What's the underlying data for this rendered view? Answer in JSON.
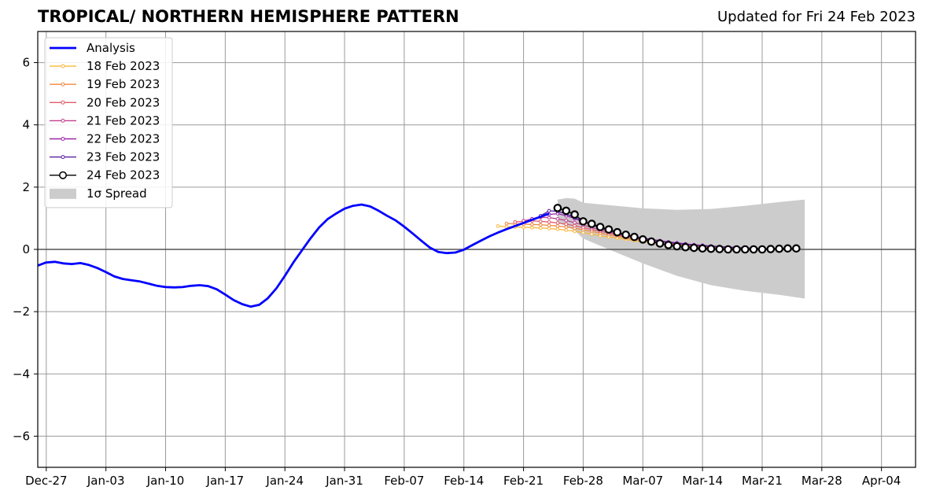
{
  "header": {
    "title": "TROPICAL/ NORTHERN HEMISPHERE PATTERN",
    "updated": "Updated for Fri 24 Feb 2023"
  },
  "chart_data": {
    "type": "line",
    "title": "TROPICAL/ NORTHERN HEMISPHERE PATTERN",
    "xlabel": "",
    "ylabel": "",
    "x_axis": {
      "type": "date",
      "range": [
        "2022-12-26",
        "2023-04-08"
      ],
      "ticks": [
        "2022-12-27",
        "2023-01-03",
        "2023-01-10",
        "2023-01-17",
        "2023-01-24",
        "2023-01-31",
        "2023-02-07",
        "2023-02-14",
        "2023-02-21",
        "2023-02-28",
        "2023-03-07",
        "2023-03-14",
        "2023-03-21",
        "2023-03-28",
        "2023-04-04"
      ],
      "tick_labels": [
        "Dec-27",
        "Jan-03",
        "Jan-10",
        "Jan-17",
        "Jan-24",
        "Jan-31",
        "Feb-07",
        "Feb-14",
        "Feb-21",
        "Feb-28",
        "Mar-07",
        "Mar-14",
        "Mar-21",
        "Mar-28",
        "Apr-04"
      ]
    },
    "y_axis": {
      "range": [
        -7,
        7
      ],
      "ticks": [
        -6,
        -4,
        -2,
        0,
        2,
        4,
        6
      ],
      "tick_labels": [
        "−6",
        "−4",
        "−2",
        "0",
        "2",
        "4",
        "6"
      ]
    },
    "grid": true,
    "zero_line": true,
    "legend_position": "top-left",
    "analysis": {
      "name": "Analysis",
      "color": "#0000ff",
      "points": [
        [
          "2022-12-26",
          -0.52
        ],
        [
          "2022-12-27",
          -0.42
        ],
        [
          "2022-12-28",
          -0.4
        ],
        [
          "2022-12-29",
          -0.45
        ],
        [
          "2022-12-30",
          -0.47
        ],
        [
          "2022-12-31",
          -0.44
        ],
        [
          "2023-01-01",
          -0.5
        ],
        [
          "2023-01-02",
          -0.6
        ],
        [
          "2023-01-03",
          -0.73
        ],
        [
          "2023-01-04",
          -0.87
        ],
        [
          "2023-01-05",
          -0.95
        ],
        [
          "2023-01-06",
          -0.99
        ],
        [
          "2023-01-07",
          -1.03
        ],
        [
          "2023-01-08",
          -1.1
        ],
        [
          "2023-01-09",
          -1.17
        ],
        [
          "2023-01-10",
          -1.21
        ],
        [
          "2023-01-11",
          -1.22
        ],
        [
          "2023-01-12",
          -1.21
        ],
        [
          "2023-01-13",
          -1.17
        ],
        [
          "2023-01-14",
          -1.15
        ],
        [
          "2023-01-15",
          -1.18
        ],
        [
          "2023-01-16",
          -1.28
        ],
        [
          "2023-01-17",
          -1.45
        ],
        [
          "2023-01-18",
          -1.63
        ],
        [
          "2023-01-19",
          -1.76
        ],
        [
          "2023-01-20",
          -1.84
        ],
        [
          "2023-01-21",
          -1.78
        ],
        [
          "2023-01-22",
          -1.57
        ],
        [
          "2023-01-23",
          -1.25
        ],
        [
          "2023-01-24",
          -0.85
        ],
        [
          "2023-01-25",
          -0.42
        ],
        [
          "2023-01-26",
          -0.03
        ],
        [
          "2023-01-27",
          0.35
        ],
        [
          "2023-01-28",
          0.7
        ],
        [
          "2023-01-29",
          0.97
        ],
        [
          "2023-01-30",
          1.15
        ],
        [
          "2023-01-31",
          1.31
        ],
        [
          "2023-02-01",
          1.4
        ],
        [
          "2023-02-02",
          1.44
        ],
        [
          "2023-02-03",
          1.38
        ],
        [
          "2023-02-04",
          1.24
        ],
        [
          "2023-02-05",
          1.08
        ],
        [
          "2023-02-06",
          0.93
        ],
        [
          "2023-02-07",
          0.73
        ],
        [
          "2023-02-08",
          0.51
        ],
        [
          "2023-02-09",
          0.28
        ],
        [
          "2023-02-10",
          0.06
        ],
        [
          "2023-02-11",
          -0.08
        ],
        [
          "2023-02-12",
          -0.12
        ],
        [
          "2023-02-13",
          -0.1
        ],
        [
          "2023-02-14",
          -0.01
        ],
        [
          "2023-02-15",
          0.14
        ],
        [
          "2023-02-16",
          0.28
        ],
        [
          "2023-02-17",
          0.42
        ],
        [
          "2023-02-18",
          0.54
        ],
        [
          "2023-02-19",
          0.65
        ],
        [
          "2023-02-20",
          0.75
        ],
        [
          "2023-02-21",
          0.85
        ],
        [
          "2023-02-22",
          0.95
        ],
        [
          "2023-02-23",
          1.05
        ],
        [
          "2023-02-24",
          1.15
        ]
      ]
    },
    "forecasts": [
      {
        "name": "18 Feb 2023",
        "color": "#f9b63c",
        "start": "2023-02-18",
        "values": [
          0.75,
          0.73,
          0.72,
          0.71,
          0.7,
          0.69,
          0.67,
          0.65,
          0.62,
          0.58,
          0.54,
          0.49,
          0.44,
          0.4,
          0.36,
          0.32,
          0.28,
          0.24,
          0.21,
          0.18,
          0.15,
          0.12,
          0.1,
          0.08,
          0.06,
          0.05,
          0.04,
          0.03,
          0.03
        ]
      },
      {
        "name": "19 Feb 2023",
        "color": "#f0883e",
        "start": "2023-02-19",
        "values": [
          0.83,
          0.82,
          0.81,
          0.8,
          0.79,
          0.77,
          0.75,
          0.72,
          0.68,
          0.63,
          0.58,
          0.52,
          0.47,
          0.42,
          0.37,
          0.32,
          0.28,
          0.24,
          0.21,
          0.18,
          0.15,
          0.12,
          0.1,
          0.08,
          0.06,
          0.05,
          0.04,
          0.03,
          0.03
        ]
      },
      {
        "name": "20 Feb 2023",
        "color": "#e05a6a",
        "start": "2023-02-20",
        "values": [
          0.88,
          0.9,
          0.92,
          0.9,
          0.88,
          0.85,
          0.81,
          0.76,
          0.7,
          0.64,
          0.58,
          0.52,
          0.46,
          0.41,
          0.36,
          0.31,
          0.27,
          0.23,
          0.2,
          0.17,
          0.14,
          0.12,
          0.1,
          0.08,
          0.06,
          0.05,
          0.04,
          0.03,
          0.03
        ]
      },
      {
        "name": "21 Feb 2023",
        "color": "#c1408e",
        "start": "2023-02-21",
        "values": [
          0.92,
          0.98,
          1.03,
          1.02,
          0.98,
          0.93,
          0.86,
          0.78,
          0.7,
          0.63,
          0.56,
          0.5,
          0.44,
          0.39,
          0.34,
          0.29,
          0.25,
          0.22,
          0.19,
          0.16,
          0.13,
          0.11,
          0.09,
          0.07,
          0.06,
          0.05,
          0.04,
          0.03,
          0.03
        ]
      },
      {
        "name": "22 Feb 2023",
        "color": "#9b27a8",
        "start": "2023-02-22",
        "values": [
          0.98,
          1.05,
          1.12,
          1.15,
          1.08,
          0.99,
          0.88,
          0.78,
          0.69,
          0.61,
          0.54,
          0.48,
          0.42,
          0.37,
          0.32,
          0.28,
          0.24,
          0.21,
          0.18,
          0.15,
          0.13,
          0.11,
          0.09,
          0.07,
          0.06,
          0.05,
          0.04,
          0.03,
          0.03
        ]
      },
      {
        "name": "23 Feb 2023",
        "color": "#5a1fa0",
        "start": "2023-02-23",
        "values": [
          1.08,
          1.24,
          1.22,
          1.14,
          1.02,
          0.9,
          0.79,
          0.69,
          0.6,
          0.53,
          0.47,
          0.41,
          0.36,
          0.31,
          0.27,
          0.23,
          0.2,
          0.17,
          0.14,
          0.12,
          0.1,
          0.08,
          0.07,
          0.06,
          0.05,
          0.04,
          0.03,
          0.03,
          0.03
        ]
      },
      {
        "name": "24 Feb 2023",
        "color": "#000000",
        "start": "2023-02-25",
        "marker": "open-circle",
        "values": [
          1.33,
          1.24,
          1.12,
          0.9,
          0.82,
          0.72,
          0.64,
          0.55,
          0.47,
          0.4,
          0.32,
          0.25,
          0.19,
          0.14,
          0.1,
          0.07,
          0.05,
          0.03,
          0.02,
          0.01,
          0.0,
          0.0,
          0.0,
          0.0,
          0.0,
          0.01,
          0.02,
          0.03,
          0.03
        ]
      }
    ],
    "spread": {
      "name": "1σ Spread",
      "color": "#cccccc",
      "points": [
        [
          "2023-02-25",
          0.85,
          1.6
        ],
        [
          "2023-02-26",
          0.75,
          1.65
        ],
        [
          "2023-02-27",
          0.6,
          1.63
        ],
        [
          "2023-02-28",
          0.35,
          1.5
        ],
        [
          "2023-03-03",
          0.0,
          1.42
        ],
        [
          "2023-03-07",
          -0.45,
          1.32
        ],
        [
          "2023-03-11",
          -0.85,
          1.27
        ],
        [
          "2023-03-15",
          -1.15,
          1.3
        ],
        [
          "2023-03-19",
          -1.33,
          1.4
        ],
        [
          "2023-03-23",
          -1.46,
          1.52
        ],
        [
          "2023-03-26",
          -1.58,
          1.6
        ]
      ]
    }
  },
  "legend": {
    "items": [
      {
        "label": "Analysis",
        "kind": "line",
        "color": "#0000ff"
      },
      {
        "label": "18 Feb 2023",
        "kind": "dotline",
        "color": "#f9b63c"
      },
      {
        "label": "19 Feb 2023",
        "kind": "dotline",
        "color": "#f0883e"
      },
      {
        "label": "20 Feb 2023",
        "kind": "dotline",
        "color": "#e05a6a"
      },
      {
        "label": "21 Feb 2023",
        "kind": "dotline",
        "color": "#c1408e"
      },
      {
        "label": "22 Feb 2023",
        "kind": "dotline",
        "color": "#9b27a8"
      },
      {
        "label": "23 Feb 2023",
        "kind": "dotline",
        "color": "#5a1fa0"
      },
      {
        "label": "24 Feb 2023",
        "kind": "circleline",
        "color": "#000000"
      },
      {
        "label": "1σ Spread",
        "kind": "patch",
        "color": "#cccccc"
      }
    ]
  }
}
